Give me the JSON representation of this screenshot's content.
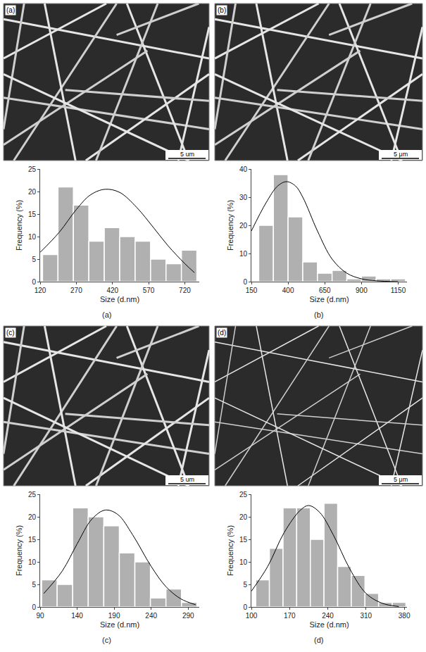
{
  "chart_data": [
    {
      "type": "histogram",
      "image_label": "(a)",
      "scale_bar": "5 um",
      "caption": "(a)",
      "x_label": "Size (d.nm)",
      "y_label": "Frequency (%)",
      "bins": [
        130,
        194,
        258,
        322,
        386,
        450,
        514,
        578,
        642,
        706,
        770
      ],
      "counts": [
        6,
        21,
        17,
        9,
        12,
        10,
        9,
        5,
        4,
        7
      ],
      "color": "#b0b0b0",
      "fit": {
        "x": [
          120,
          200,
          270,
          330,
          390,
          450,
          520,
          590,
          650,
          720,
          760
        ],
        "values": [
          6.5,
          11,
          16,
          19.3,
          20.5,
          19.8,
          16.5,
          12,
          8,
          4,
          2
        ],
        "color": "#000000",
        "line_style": "solid"
      },
      "xlim": [
        120,
        780
      ],
      "xticks": [
        120,
        270,
        420,
        570,
        720
      ],
      "ylim": [
        0,
        25
      ],
      "yticks": [
        0,
        5,
        10,
        15,
        20,
        25
      ]
    },
    {
      "type": "histogram",
      "image_label": "(b)",
      "scale_bar": "5 μm",
      "caption": "(b)",
      "x_label": "Size (d.nm)",
      "y_label": "Frequency (%)",
      "bins": [
        200,
        300,
        400,
        500,
        600,
        700,
        800,
        900,
        1000,
        1100,
        1200
      ],
      "counts": [
        20,
        38,
        23,
        7,
        3,
        4,
        1,
        2,
        1,
        1
      ],
      "color": "#b0b0b0",
      "fit": {
        "x": [
          150,
          250,
          330,
          390,
          450,
          500,
          600,
          700,
          800,
          900,
          1000,
          1150
        ],
        "values": [
          18,
          28,
          34,
          35.5,
          34,
          30,
          18,
          8,
          3,
          1,
          0.3,
          0
        ],
        "color": "#000000",
        "line_style": "solid"
      },
      "xlim": [
        150,
        1210
      ],
      "xticks": [
        150,
        400,
        650,
        900,
        1150
      ],
      "ylim": [
        0,
        40
      ],
      "yticks": [
        0,
        10,
        20,
        30,
        40
      ]
    },
    {
      "type": "histogram",
      "image_label": "(c)",
      "scale_bar": "5 um",
      "caption": "(c)",
      "x_label": "Size (d.nm)",
      "y_label": "Frequency (%)",
      "bins": [
        92,
        113,
        134,
        155,
        176,
        197,
        218,
        239,
        260,
        281,
        302
      ],
      "counts": [
        6,
        5,
        22,
        20,
        18,
        12,
        10,
        2,
        4,
        1
      ],
      "color": "#b0b0b0",
      "fit": {
        "x": [
          95,
          120,
          140,
          160,
          178,
          195,
          215,
          240,
          260,
          280,
          300
        ],
        "values": [
          3,
          8,
          14,
          19.5,
          21.5,
          20.5,
          16,
          9,
          4.5,
          1.8,
          0.5
        ],
        "color": "#000000",
        "line_style": "solid"
      },
      "xlim": [
        90,
        305
      ],
      "xticks": [
        90,
        140,
        190,
        240,
        290
      ],
      "ylim": [
        0,
        25
      ],
      "yticks": [
        0,
        5,
        10,
        15,
        20,
        25
      ]
    },
    {
      "type": "histogram",
      "image_label": "(d)",
      "scale_bar": "5 μm",
      "caption": "(d)",
      "x_label": "Size (d.nm)",
      "y_label": "Frequency (%)",
      "bins": [
        108,
        133,
        158,
        183,
        208,
        233,
        258,
        283,
        308,
        333,
        358,
        383
      ],
      "counts": [
        6,
        13,
        22,
        22,
        15,
        23,
        9,
        7,
        3,
        1,
        1
      ],
      "color": "#b0b0b0",
      "fit": {
        "x": [
          100,
          130,
          160,
          190,
          205,
          225,
          250,
          280,
          310,
          340,
          370
        ],
        "values": [
          3.5,
          9,
          16.5,
          21.5,
          22.5,
          21,
          16,
          8.5,
          3,
          0.8,
          0.1
        ],
        "color": "#000000",
        "line_style": "solid"
      },
      "xlim": [
        100,
        385
      ],
      "xticks": [
        100,
        170,
        240,
        310,
        380
      ],
      "ylim": [
        0,
        25
      ],
      "yticks": [
        0,
        5,
        10,
        15,
        20,
        25
      ]
    }
  ]
}
